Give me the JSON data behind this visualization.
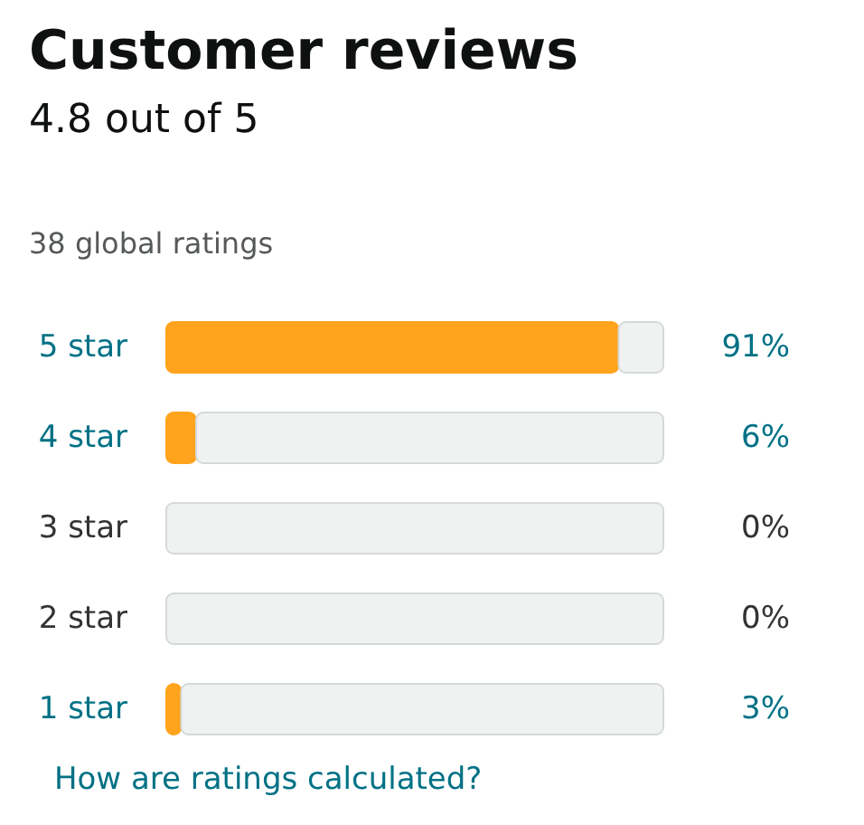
{
  "chart_data": {
    "type": "bar",
    "orientation": "horizontal",
    "stacked": true,
    "title": "Customer reviews",
    "subtitle": "4.8 out of 5",
    "annotations": [
      "38 global ratings",
      "How are ratings calculated?"
    ],
    "categories": [
      "5 star",
      "4 star",
      "3 star",
      "2 star",
      "1 star"
    ],
    "series": [
      {
        "color": "#ffa41c",
        "values": [
          91,
          6,
          0,
          0,
          3
        ],
        "value_labels": [
          "91%",
          "6%",
          "0%",
          "0%",
          "3%"
        ]
      },
      {
        "color": "#f0f2f2",
        "values": [
          9,
          94,
          100,
          100,
          97
        ]
      }
    ],
    "xlim": [
      0,
      100
    ],
    "tick_labels": "y",
    "grid": false,
    "legend": false
  }
}
